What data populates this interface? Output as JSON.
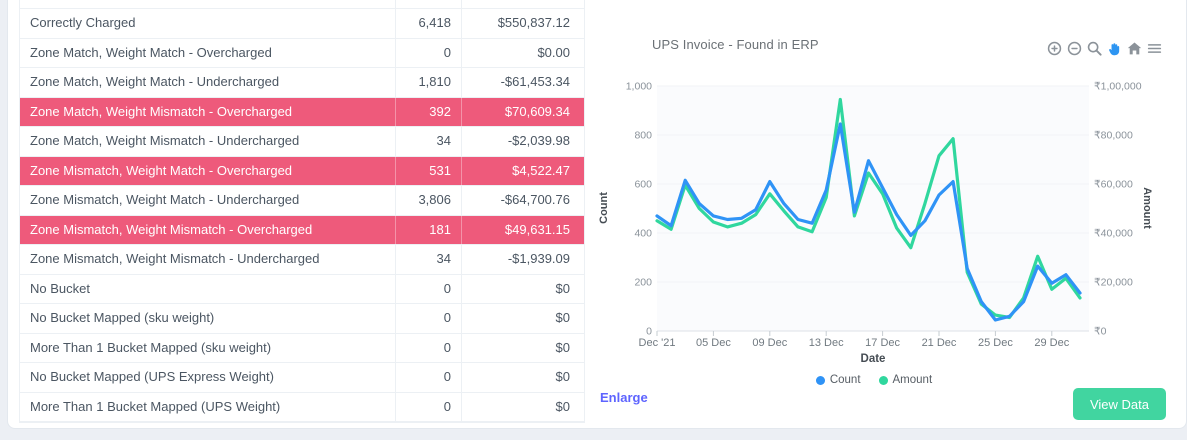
{
  "table": {
    "highlight_color": "#ee5a7b",
    "rows": [
      {
        "label": "Correctly Charged",
        "count": "6,418",
        "amount": "$550,837.12",
        "highlighted": false
      },
      {
        "label": "Zone Match, Weight Match - Overcharged",
        "count": "0",
        "amount": "$0.00",
        "highlighted": false
      },
      {
        "label": "Zone Match, Weight Match - Undercharged",
        "count": "1,810",
        "amount": "-$61,453.34",
        "highlighted": false
      },
      {
        "label": "Zone Match, Weight Mismatch - Overcharged",
        "count": "392",
        "amount": "$70,609.34",
        "highlighted": true
      },
      {
        "label": "Zone Match, Weight Mismatch - Undercharged",
        "count": "34",
        "amount": "-$2,039.98",
        "highlighted": false
      },
      {
        "label": "Zone Mismatch, Weight Match - Overcharged",
        "count": "531",
        "amount": "$4,522.47",
        "highlighted": true
      },
      {
        "label": "Zone Mismatch, Weight Match - Undercharged",
        "count": "3,806",
        "amount": "-$64,700.76",
        "highlighted": false
      },
      {
        "label": "Zone Mismatch, Weight Mismatch - Overcharged",
        "count": "181",
        "amount": "$49,631.15",
        "highlighted": true
      },
      {
        "label": "Zone Mismatch, Weight Mismatch - Undercharged",
        "count": "34",
        "amount": "-$1,939.09",
        "highlighted": false
      },
      {
        "label": "No Bucket",
        "count": "0",
        "amount": "$0",
        "highlighted": false
      },
      {
        "label": "No Bucket Mapped (sku weight)",
        "count": "0",
        "amount": "$0",
        "highlighted": false
      },
      {
        "label": "More Than 1 Bucket Mapped (sku weight)",
        "count": "0",
        "amount": "$0",
        "highlighted": false
      },
      {
        "label": "No Bucket Mapped (UPS Express Weight)",
        "count": "0",
        "amount": "$0",
        "highlighted": false
      },
      {
        "label": "More Than 1 Bucket Mapped (UPS Weight)",
        "count": "0",
        "amount": "$0",
        "highlighted": false
      }
    ]
  },
  "chart": {
    "title": "UPS Invoice - Found in ERP",
    "enlarge_label": "Enlarge",
    "view_data_label": "View Data",
    "modebar_icons": [
      "zoom-in-icon",
      "zoom-out-icon",
      "magnifier-icon",
      "pan-hand-icon",
      "home-icon",
      "menu-icon"
    ],
    "active_tool": "pan-hand-icon",
    "icon_color": "#8b9299",
    "active_tool_color": "#2d95f2"
  },
  "chart_data": {
    "type": "line",
    "title": "UPS Invoice - Found in ERP",
    "xlabel": "Date",
    "x_unit": "December 2021, daily",
    "x_days": [
      1,
      2,
      3,
      4,
      5,
      6,
      7,
      8,
      9,
      10,
      11,
      12,
      13,
      14,
      15,
      16,
      17,
      18,
      19,
      20,
      21,
      22,
      23,
      24,
      25,
      26,
      27,
      28,
      29,
      30,
      31
    ],
    "x_ticks": [
      {
        "day": 1,
        "label": "Dec '21"
      },
      {
        "day": 5,
        "label": "05 Dec"
      },
      {
        "day": 9,
        "label": "09 Dec"
      },
      {
        "day": 13,
        "label": "13 Dec"
      },
      {
        "day": 17,
        "label": "17 Dec"
      },
      {
        "day": 21,
        "label": "21 Dec"
      },
      {
        "day": 25,
        "label": "25 Dec"
      },
      {
        "day": 29,
        "label": "29 Dec"
      }
    ],
    "y_left": {
      "title": "Count",
      "min": 0,
      "max": 1000,
      "ticks": [
        "0",
        "200",
        "400",
        "600",
        "800",
        "1,000"
      ]
    },
    "y_right": {
      "title": "Amount",
      "min": 0,
      "max": 100000,
      "ticks": [
        "₹0",
        "₹20,000",
        "₹40,000",
        "₹60,000",
        "₹80,000",
        "₹1,00,000"
      ]
    },
    "series": [
      {
        "name": "Count",
        "axis": "left",
        "color": "#2f93f6",
        "values": [
          470,
          430,
          615,
          520,
          470,
          455,
          460,
          495,
          610,
          520,
          455,
          440,
          575,
          845,
          485,
          695,
          585,
          475,
          390,
          450,
          555,
          610,
          255,
          120,
          45,
          60,
          120,
          265,
          195,
          230,
          155
        ]
      },
      {
        "name": "Amount",
        "axis": "right",
        "color": "#30d79e",
        "values": [
          45000,
          41500,
          59500,
          50000,
          44500,
          42500,
          44000,
          47500,
          56000,
          49000,
          42500,
          40500,
          54500,
          94500,
          47000,
          64500,
          56000,
          42000,
          34000,
          52000,
          71500,
          78500,
          24000,
          11000,
          6500,
          5500,
          13500,
          30500,
          17000,
          21500,
          13500
        ]
      }
    ],
    "legend_position": "bottom",
    "grid": true
  }
}
